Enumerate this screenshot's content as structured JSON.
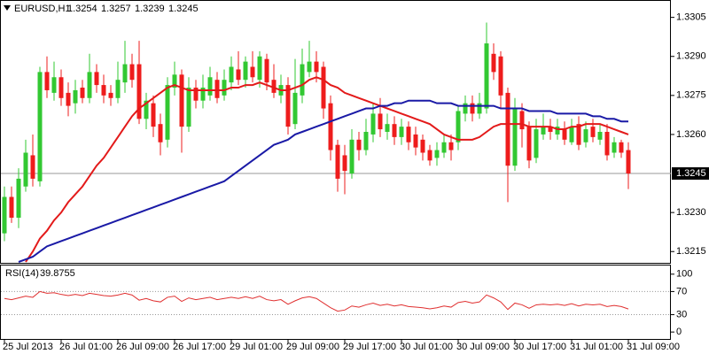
{
  "chart_data": [
    {
      "type": "candlestick",
      "title": "EURUSD,H1",
      "categories": [
        "25 Jul 2013",
        null,
        null,
        null,
        null,
        null,
        null,
        null,
        "26 Jul 01:00",
        null,
        null,
        null,
        null,
        null,
        null,
        null,
        "26 Jul 09:00",
        null,
        null,
        null,
        null,
        null,
        null,
        null,
        "26 Jul 17:00",
        null,
        null,
        null,
        null,
        null,
        null,
        null,
        "29 Jul 01:00",
        null,
        null,
        null,
        null,
        null,
        null,
        null,
        "29 Jul 09:00",
        null,
        null,
        null,
        null,
        null,
        null,
        null,
        "29 Jul 17:00",
        null,
        null,
        null,
        null,
        null,
        null,
        null,
        "30 Jul 01:00",
        null,
        null,
        null,
        null,
        null,
        null,
        null,
        "30 Jul 09:00",
        null,
        null,
        null,
        null,
        null,
        null,
        null,
        "30 Jul 17:00",
        null,
        null,
        null,
        null,
        null,
        null,
        null,
        "31 Jul 01:00",
        null,
        null,
        null,
        null,
        null,
        null,
        null,
        "31 Jul 09:00"
      ],
      "open": [
        1.3222,
        1.3236,
        1.3228,
        1.324,
        1.3252,
        1.3242,
        1.3284,
        1.3276,
        1.3282,
        1.3276,
        1.3272,
        1.3278,
        1.3274,
        1.3284,
        1.3279,
        1.3276,
        1.3274,
        1.328,
        1.3287,
        1.3287,
        1.3266,
        1.3272,
        1.3264,
        1.3258,
        1.3278,
        1.3283,
        1.3263,
        1.3278,
        1.3273,
        1.3275,
        1.3281,
        1.3275,
        1.328,
        1.3285,
        1.3281,
        1.3286,
        1.3281,
        1.3289,
        1.3281,
        1.3275,
        1.3279,
        1.3264,
        1.3275,
        1.3284,
        1.3288,
        1.3286,
        1.3272,
        1.3256,
        1.3252,
        1.3245,
        1.3258,
        1.3254,
        1.326,
        1.3268,
        1.3261,
        1.3264,
        1.3259,
        1.3263,
        1.326,
        1.3258,
        1.3254,
        1.3251,
        1.3253,
        1.3257,
        1.3257,
        1.3268,
        1.3272,
        1.3268,
        1.327,
        1.3291,
        1.329,
        1.3276,
        1.3248,
        1.3269,
        1.3263,
        1.3251,
        1.326,
        1.3263,
        1.326,
        1.3262,
        1.3257,
        1.3264,
        1.3257,
        1.3263,
        1.3258,
        1.3261,
        1.3253,
        1.3257,
        1.3254
      ],
      "high": [
        1.324,
        1.324,
        1.3247,
        1.3258,
        1.326,
        1.3286,
        1.329,
        1.3288,
        1.3285,
        1.328,
        1.3281,
        1.3281,
        1.3291,
        1.3287,
        1.3283,
        1.3279,
        1.3288,
        1.3296,
        1.3291,
        1.3296,
        1.3276,
        1.3275,
        1.3268,
        1.3282,
        1.3288,
        1.3285,
        1.3282,
        1.3281,
        1.3283,
        1.3286,
        1.3284,
        1.3285,
        1.329,
        1.3292,
        1.329,
        1.3292,
        1.3292,
        1.3291,
        1.3287,
        1.3283,
        1.3282,
        1.3289,
        1.3293,
        1.3296,
        1.3292,
        1.3288,
        1.3275,
        1.3258,
        1.3256,
        1.3262,
        1.3261,
        1.3266,
        1.3272,
        1.3274,
        1.3268,
        1.3267,
        1.3266,
        1.3265,
        1.3263,
        1.326,
        1.3256,
        1.3257,
        1.326,
        1.326,
        1.3271,
        1.3275,
        1.3275,
        1.3276,
        1.3303,
        1.3295,
        1.3292,
        1.3278,
        1.3274,
        1.3272,
        1.3265,
        1.3266,
        1.3268,
        1.3266,
        1.3266,
        1.3265,
        1.3266,
        1.3267,
        1.3265,
        1.3266,
        1.3264,
        1.3264,
        1.3259,
        1.3258,
        1.3257
      ],
      "low": [
        1.3219,
        1.3226,
        1.3224,
        1.3238,
        1.324,
        1.324,
        1.3274,
        1.3273,
        1.3271,
        1.3267,
        1.3268,
        1.3272,
        1.3272,
        1.3276,
        1.3272,
        1.3271,
        1.3272,
        1.3276,
        1.3278,
        1.3264,
        1.3262,
        1.3259,
        1.3252,
        1.3255,
        1.3275,
        1.3253,
        1.3261,
        1.327,
        1.327,
        1.3273,
        1.3272,
        1.3273,
        1.3277,
        1.3279,
        1.3278,
        1.328,
        1.3278,
        1.3277,
        1.3274,
        1.3272,
        1.326,
        1.3262,
        1.3272,
        1.3282,
        1.328,
        1.3266,
        1.325,
        1.3238,
        1.3237,
        1.3243,
        1.325,
        1.3252,
        1.3257,
        1.3259,
        1.3258,
        1.3256,
        1.3256,
        1.3254,
        1.3252,
        1.325,
        1.3248,
        1.3248,
        1.3251,
        1.325,
        1.3254,
        1.3265,
        1.3265,
        1.3266,
        1.3268,
        1.3281,
        1.327,
        1.3234,
        1.3246,
        1.3255,
        1.3247,
        1.3249,
        1.3258,
        1.3258,
        1.3258,
        1.3256,
        1.3256,
        1.3254,
        1.3255,
        1.3257,
        1.3256,
        1.325,
        1.3251,
        1.3251,
        1.3239
      ],
      "close": [
        1.3236,
        1.3228,
        1.3243,
        1.3253,
        1.3243,
        1.3284,
        1.3277,
        1.3282,
        1.3274,
        1.3271,
        1.3277,
        1.3274,
        1.3284,
        1.3279,
        1.3275,
        1.3274,
        1.3281,
        1.3287,
        1.3281,
        1.3266,
        1.3273,
        1.3263,
        1.3257,
        1.3279,
        1.3283,
        1.3263,
        1.3278,
        1.3273,
        1.3278,
        1.3282,
        1.3274,
        1.3281,
        1.3286,
        1.3281,
        1.3288,
        1.3282,
        1.329,
        1.328,
        1.3276,
        1.3279,
        1.3263,
        1.3276,
        1.3287,
        1.3288,
        1.3284,
        1.327,
        1.3254,
        1.3243,
        1.3246,
        1.3258,
        1.3254,
        1.3261,
        1.3268,
        1.3262,
        1.3264,
        1.3259,
        1.3263,
        1.3257,
        1.3255,
        1.3253,
        1.325,
        1.3254,
        1.3257,
        1.3254,
        1.3269,
        1.3272,
        1.3268,
        1.3272,
        1.3295,
        1.3284,
        1.3275,
        1.3248,
        1.327,
        1.3262,
        1.325,
        1.3262,
        1.3263,
        1.3261,
        1.3263,
        1.3258,
        1.3263,
        1.3256,
        1.3262,
        1.3259,
        1.3261,
        1.3252,
        1.3257,
        1.3253,
        1.3245
      ],
      "up_color": "#32c832",
      "down_color": "#ee1c1c",
      "series": [
        {
          "color": "#e31a1a",
          "values": [
            null,
            null,
            null,
            1.3211,
            1.3215,
            1.322,
            1.3223,
            1.3227,
            1.323,
            1.3234,
            1.3237,
            1.324,
            1.3244,
            1.3248,
            1.3251,
            1.3255,
            1.3259,
            1.3263,
            1.3267,
            1.327,
            1.3272,
            1.3274,
            1.3276,
            1.3278,
            1.3279,
            1.3278,
            1.3277,
            1.3277,
            1.3277,
            1.3277,
            1.3277,
            1.3277,
            1.3278,
            1.3278,
            1.3279,
            1.3279,
            1.328,
            1.3279,
            1.3278,
            1.3277,
            1.3277,
            1.3278,
            1.3279,
            1.3281,
            1.3282,
            1.3281,
            1.3279,
            1.3278,
            1.3276,
            1.3275,
            1.3274,
            1.3273,
            1.3272,
            1.3271,
            1.327,
            1.3269,
            1.3268,
            1.3267,
            1.3266,
            1.3265,
            1.3264,
            1.3262,
            1.326,
            1.3259,
            1.3258,
            1.3258,
            1.3258,
            1.3259,
            1.3261,
            1.3263,
            1.3264,
            1.3264,
            1.3264,
            1.3264,
            1.3263,
            1.3263,
            1.3263,
            1.3263,
            1.3262,
            1.3262,
            1.3263,
            1.3263,
            1.3264,
            1.3264,
            1.3264,
            1.3263,
            1.3262,
            1.3261,
            1.326
          ]
        },
        {
          "color": "#1a1aa6",
          "values": [
            null,
            null,
            1.3211,
            1.3212,
            1.3213,
            1.3215,
            1.3217,
            1.3218,
            1.3219,
            1.322,
            1.3221,
            1.3222,
            1.3223,
            1.3224,
            1.3225,
            1.3226,
            1.3227,
            1.3228,
            1.3229,
            1.323,
            1.3231,
            1.3232,
            1.3233,
            1.3234,
            1.3235,
            1.3236,
            1.3237,
            1.3238,
            1.3239,
            1.324,
            1.3241,
            1.3242,
            1.3244,
            1.3246,
            1.3248,
            1.325,
            1.3252,
            1.3254,
            1.3256,
            1.3257,
            1.3258,
            1.326,
            1.3261,
            1.3262,
            1.3263,
            1.3264,
            1.3265,
            1.3266,
            1.3267,
            1.3268,
            1.3269,
            1.327,
            1.327,
            1.3271,
            1.3271,
            1.3272,
            1.3272,
            1.3273,
            1.3273,
            1.3273,
            1.3273,
            1.3272,
            1.3272,
            1.3272,
            1.3271,
            1.3271,
            1.3271,
            1.3271,
            1.3271,
            1.3271,
            1.327,
            1.327,
            1.327,
            1.327,
            1.3269,
            1.3269,
            1.3269,
            1.3269,
            1.3268,
            1.3268,
            1.3268,
            1.3268,
            1.3268,
            1.3267,
            1.3267,
            1.3266,
            1.3266,
            1.3265,
            1.3265
          ]
        }
      ],
      "ylim": [
        1.3211,
        1.3311
      ],
      "yticks": [
        1.3305,
        {
          "value": 1.329,
          "label": "1.3290"
        },
        1.3275,
        {
          "value": 1.326,
          "label": "1.3260"
        },
        {
          "value": 1.323,
          "label": "1.3230"
        },
        1.3215
      ],
      "grid": false
    },
    {
      "type": "line",
      "title": "RSI(14)",
      "color": "#e03030",
      "values": [
        58,
        56,
        59,
        62,
        60,
        70,
        67,
        68,
        65,
        63,
        65,
        63,
        67,
        65,
        63,
        62,
        64,
        67,
        64,
        55,
        58,
        54,
        52,
        60,
        62,
        53,
        59,
        56,
        58,
        60,
        56,
        58,
        60,
        58,
        61,
        58,
        62,
        56,
        54,
        56,
        48,
        54,
        59,
        61,
        58,
        50,
        42,
        36,
        38,
        45,
        43,
        47,
        50,
        46,
        48,
        45,
        47,
        44,
        43,
        42,
        40,
        42,
        45,
        43,
        51,
        53,
        50,
        52,
        64,
        59,
        52,
        39,
        50,
        47,
        41,
        47,
        48,
        47,
        48,
        46,
        49,
        45,
        48,
        47,
        48,
        44,
        46,
        44,
        39.8755
      ],
      "ylim": [
        -12,
        115
      ],
      "yticks": [
        0,
        30,
        70,
        100
      ],
      "levels": [
        70,
        30
      ]
    }
  ]
}
